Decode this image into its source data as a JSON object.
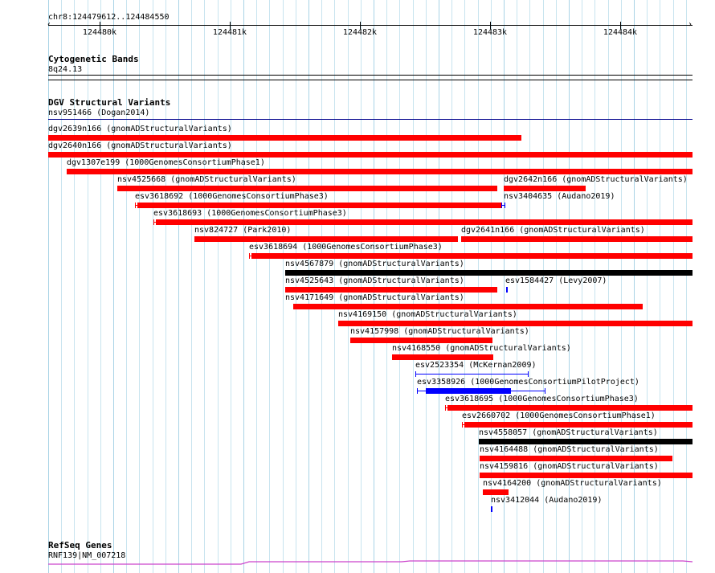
{
  "ruler": {
    "location": "chr8:124479612..124484550",
    "ticks": [
      "124480k",
      "124481k",
      "124482k",
      "124483k",
      "124484k"
    ]
  },
  "cytoband": {
    "title": "Cytogenetic Bands",
    "band": "8q24.13"
  },
  "dgv": {
    "title": "DGV Structural Variants",
    "top_label": "nsv951466 (Dogan2014)",
    "colors": {
      "loss": "#ff0000",
      "gain": "#0000ff",
      "complex": "#000000",
      "line": "#00008b"
    },
    "features": [
      {
        "label": "dgv2639n166 (gnomADStructuralVariants)",
        "kind": "loss"
      },
      {
        "label": "dgv2640n166 (gnomADStructuralVariants)",
        "kind": "loss"
      },
      {
        "label": "dgv1307e199 (1000GenomesConsortiumPhase1)",
        "kind": "loss"
      },
      {
        "label": "nsv4525668 (gnomADStructuralVariants)",
        "kind": "loss"
      },
      {
        "label": "dgv2642n166 (gnomADStructuralVariants)",
        "kind": "loss"
      },
      {
        "label": "esv3618692 (1000GenomesConsortiumPhase3)",
        "kind": "loss"
      },
      {
        "label": "nsv3404635 (Audano2019)",
        "kind": "gain"
      },
      {
        "label": "esv3618693 (1000GenomesConsortiumPhase3)",
        "kind": "loss"
      },
      {
        "label": "nsv824727 (Park2010)",
        "kind": "loss"
      },
      {
        "label": "dgv2641n166 (gnomADStructuralVariants)",
        "kind": "loss"
      },
      {
        "label": "esv3618694 (1000GenomesConsortiumPhase3)",
        "kind": "loss"
      },
      {
        "label": "nsv4567879 (gnomADStructuralVariants)",
        "kind": "complex"
      },
      {
        "label": "nsv4525643 (gnomADStructuralVariants)",
        "kind": "loss"
      },
      {
        "label": "esv1584427 (Levy2007)",
        "kind": "gain"
      },
      {
        "label": "nsv4171649 (gnomADStructuralVariants)",
        "kind": "loss"
      },
      {
        "label": "nsv4169150 (gnomADStructuralVariants)",
        "kind": "loss"
      },
      {
        "label": "nsv4157998 (gnomADStructuralVariants)",
        "kind": "loss"
      },
      {
        "label": "nsv4168550 (gnomADStructuralVariants)",
        "kind": "loss"
      },
      {
        "label": "esv2523354 (McKernan2009)",
        "kind": "gain"
      },
      {
        "label": "esv3358926 (1000GenomesConsortiumPilotProject)",
        "kind": "gain"
      },
      {
        "label": "esv3618695 (1000GenomesConsortiumPhase3)",
        "kind": "loss"
      },
      {
        "label": "esv2660702 (1000GenomesConsortiumPhase1)",
        "kind": "loss"
      },
      {
        "label": "nsv4558057 (gnomADStructuralVariants)",
        "kind": "complex"
      },
      {
        "label": "nsv4164488 (gnomADStructuralVariants)",
        "kind": "loss"
      },
      {
        "label": "nsv4159816 (gnomADStructuralVariants)",
        "kind": "loss"
      },
      {
        "label": "nsv4164200 (gnomADStructuralVariants)",
        "kind": "loss"
      },
      {
        "label": "nsv3412044 (Audano2019)",
        "kind": "gain"
      }
    ]
  },
  "refseq": {
    "title": "RefSeq Genes",
    "gene": "RNF139|NM_007218",
    "color": "#cc44cc"
  }
}
